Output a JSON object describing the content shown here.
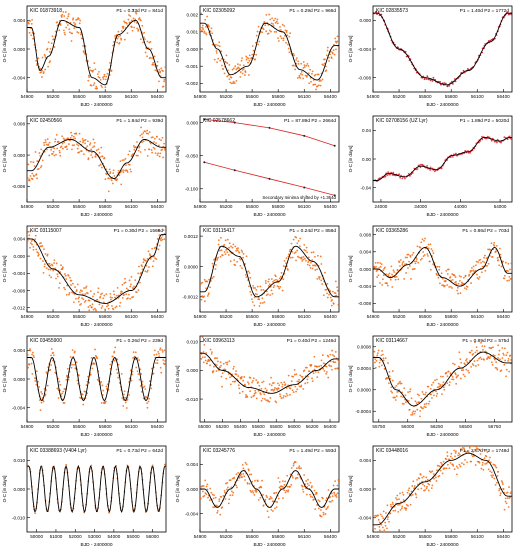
{
  "chart_data": [
    {
      "type": "scatter",
      "panel": "KIC 01873918",
      "period_label": "P1 = 0.33d P2 = 841d",
      "ylabel": "O-C [in days]",
      "xlabel": "BJD - 2400000",
      "xticks": [
        "54900",
        "55200",
        "55500",
        "55800",
        "56100",
        "56400"
      ],
      "yticks": [
        "0.004",
        "0.000",
        "-0.004"
      ],
      "xlim": [
        54900,
        56500
      ],
      "ylim": [
        -0.006,
        0.006
      ],
      "curve": [
        [
          54950,
          0.003
        ],
        [
          55050,
          -0.003
        ],
        [
          55150,
          -0.001
        ],
        [
          55300,
          0.004
        ],
        [
          55500,
          0.003
        ],
        [
          55650,
          -0.004
        ],
        [
          55800,
          -0.005
        ],
        [
          55950,
          0.002
        ],
        [
          56150,
          0.004
        ],
        [
          56300,
          0.0
        ],
        [
          56450,
          -0.004
        ]
      ]
    },
    {
      "type": "scatter",
      "panel": "KIC 02305092",
      "period_label": "P1 = 0.29d P2 = 966d",
      "ylabel": "O-C [in days]",
      "xlabel": "BJD - 2400000",
      "xticks": [
        "54900",
        "55200",
        "55500",
        "55800",
        "56100",
        "56400"
      ],
      "yticks": [
        "0.002",
        "0.001",
        "0.000",
        "-0.001",
        "-0.002"
      ],
      "xlim": [
        54900,
        56500
      ],
      "ylim": [
        -0.0025,
        0.0025
      ],
      "curve": [
        [
          54950,
          0.0015
        ],
        [
          55100,
          0.0
        ],
        [
          55250,
          -0.0015
        ],
        [
          55450,
          -0.001
        ],
        [
          55650,
          0.0015
        ],
        [
          55850,
          0.001
        ],
        [
          56050,
          -0.0012
        ],
        [
          56250,
          -0.0018
        ],
        [
          56450,
          0.0002
        ]
      ]
    },
    {
      "type": "line",
      "panel": "KIC 02835573",
      "period_label": "P1 = 1.40d P2 = 1772d",
      "ylabel": "O-C [in days]",
      "xlabel": "BJD - 2400000",
      "xticks": [
        "54900",
        "55200",
        "55500",
        "55800",
        "56100",
        "56400"
      ],
      "yticks": [
        "0.000",
        "-0.004",
        "-0.008"
      ],
      "xlim": [
        54900,
        56500
      ],
      "ylim": [
        -0.01,
        0.002
      ],
      "curve": [
        [
          54950,
          0.001
        ],
        [
          55200,
          -0.004
        ],
        [
          55500,
          -0.008
        ],
        [
          55750,
          -0.009
        ],
        [
          56000,
          -0.007
        ],
        [
          56250,
          -0.003
        ],
        [
          56450,
          0.001
        ]
      ]
    },
    {
      "type": "scatter",
      "panel": "KIC 02450566",
      "period_label": "P1 = 1.84d P2 = 939d",
      "ylabel": "O-C [in days]",
      "xlabel": "BJD - 2400000",
      "xticks": [
        "54900",
        "55200",
        "55500",
        "55800",
        "56100",
        "56400"
      ],
      "yticks": [
        "0.008",
        "0.000",
        "-0.008"
      ],
      "xlim": [
        54900,
        56500
      ],
      "ylim": [
        -0.012,
        0.01
      ],
      "curve": [
        [
          54950,
          -0.004
        ],
        [
          55150,
          0.002
        ],
        [
          55400,
          0.004
        ],
        [
          55650,
          0.001
        ],
        [
          55900,
          -0.006
        ],
        [
          56050,
          -0.002
        ],
        [
          56250,
          0.004
        ],
        [
          56450,
          0.002
        ]
      ]
    },
    {
      "type": "line",
      "panel": "KIC 02578662",
      "period_label": "P1 = 87.89d P2 = 2664d",
      "ylabel": "O-C [in days]",
      "xlabel": "BJD - 2400000",
      "annotation": "Secondary minima shifted by +1.364d",
      "xticks": [
        "54900",
        "55200",
        "55500",
        "55800",
        "56100",
        "56400"
      ],
      "yticks": [
        "0.000",
        "-0.050",
        "-0.100"
      ],
      "xlim": [
        54900,
        56500
      ],
      "ylim": [
        -0.12,
        0.01
      ],
      "series": [
        {
          "values": [
            [
              54950,
              0.005
            ],
            [
              55300,
              0.0
            ],
            [
              55700,
              -0.008
            ],
            [
              56100,
              -0.02
            ],
            [
              56450,
              -0.035
            ]
          ]
        },
        {
          "values": [
            [
              54950,
              -0.06
            ],
            [
              55300,
              -0.072
            ],
            [
              55700,
              -0.085
            ],
            [
              56100,
              -0.098
            ],
            [
              56450,
              -0.11
            ]
          ]
        }
      ]
    },
    {
      "type": "line",
      "panel": "KIC 02708156 (UZ Lyr)",
      "period_label": "P1 = 1.89d P2 = 5020d",
      "ylabel": "O-C [in days]",
      "xlabel": "BJD - 2400000",
      "xticks": [
        "24000",
        "34000",
        "44000",
        "54000"
      ],
      "yticks": [
        "0.04",
        "0.00",
        "-0.04"
      ],
      "xlim": [
        22000,
        57000
      ],
      "ylim": [
        -0.06,
        0.06
      ],
      "curve": [
        [
          23000,
          -0.03
        ],
        [
          26000,
          -0.02
        ],
        [
          30000,
          -0.025
        ],
        [
          34000,
          -0.01
        ],
        [
          38000,
          -0.015
        ],
        [
          42000,
          0.005
        ],
        [
          46000,
          0.01
        ],
        [
          50000,
          0.03
        ],
        [
          54000,
          0.025
        ],
        [
          56500,
          0.03
        ]
      ]
    },
    {
      "type": "scatter",
      "panel": "KIC 03115007",
      "period_label": "P1 = 0.30d P2 = 1568d",
      "ylabel": "O-C [in days]",
      "xlabel": "BJD - 2400000",
      "xticks": [
        "54900",
        "55200",
        "55500",
        "55800",
        "56100",
        "56400"
      ],
      "yticks": [
        "0.004",
        "0.000",
        "-0.004",
        "-0.008",
        "-0.012"
      ],
      "xlim": [
        54900,
        56500
      ],
      "ylim": [
        -0.013,
        0.007
      ],
      "curve": [
        [
          54950,
          0.004
        ],
        [
          55200,
          -0.003
        ],
        [
          55500,
          -0.009
        ],
        [
          55800,
          -0.011
        ],
        [
          56100,
          -0.008
        ],
        [
          56350,
          0.0
        ],
        [
          56450,
          0.005
        ]
      ]
    },
    {
      "type": "scatter",
      "panel": "KIC 03115417",
      "period_label": "P1 = 0.24d P2 = 858d",
      "ylabel": "O-C [in days]",
      "xlabel": "BJD - 2400000",
      "xticks": [
        "54900",
        "55200",
        "55500",
        "55800",
        "56100",
        "56400"
      ],
      "yticks": [
        "0.0012",
        "0.0000",
        "-0.0012"
      ],
      "xlim": [
        54900,
        56500
      ],
      "ylim": [
        -0.0018,
        0.0016
      ],
      "curve": [
        [
          54950,
          -0.001
        ],
        [
          55150,
          0.0008
        ],
        [
          55350,
          0.0004
        ],
        [
          55550,
          -0.0012
        ],
        [
          55800,
          -0.0006
        ],
        [
          56000,
          0.0008
        ],
        [
          56200,
          0.0002
        ],
        [
          56450,
          -0.0012
        ]
      ]
    },
    {
      "type": "scatter",
      "panel": "KIC 03365286",
      "period_label": "P1 = 0.86d P2 = 703d",
      "ylabel": "O-C [in days]",
      "xlabel": "BJD - 2400000",
      "xticks": [
        "54900",
        "55200",
        "55500",
        "55800",
        "56100",
        "56400"
      ],
      "yticks": [
        "0.008",
        "0.004",
        "0.000",
        "-0.004",
        "-0.008"
      ],
      "xlim": [
        54900,
        56500
      ],
      "ylim": [
        -0.01,
        0.01
      ],
      "curve": [
        [
          54950,
          0.0
        ],
        [
          55100,
          -0.002
        ],
        [
          55300,
          0.001
        ],
        [
          55500,
          0.005
        ],
        [
          55700,
          -0.002
        ],
        [
          55900,
          -0.004
        ],
        [
          56150,
          0.0
        ],
        [
          56300,
          0.005
        ],
        [
          56450,
          -0.001
        ]
      ]
    },
    {
      "type": "scatter",
      "panel": "KIC 03455900",
      "period_label": "P1 = 0.26d P2 = 239d",
      "ylabel": "O-C [in days]",
      "xlabel": "BJD - 2400000",
      "xticks": [
        "54900",
        "55200",
        "55500",
        "55800",
        "56100",
        "56400"
      ],
      "yticks": [
        "0.004",
        "0.000",
        "-0.004"
      ],
      "xlim": [
        54900,
        56500
      ],
      "ylim": [
        -0.006,
        0.006
      ],
      "curve": [
        [
          54950,
          0.003
        ],
        [
          55070,
          -0.003
        ],
        [
          55190,
          0.003
        ],
        [
          55310,
          -0.003
        ],
        [
          55430,
          0.003
        ],
        [
          55550,
          -0.003
        ],
        [
          55670,
          0.003
        ],
        [
          55790,
          -0.003
        ],
        [
          55910,
          0.003
        ],
        [
          56030,
          -0.003
        ],
        [
          56150,
          0.003
        ],
        [
          56270,
          -0.003
        ],
        [
          56390,
          0.003
        ]
      ]
    },
    {
      "type": "scatter",
      "panel": "KIC 03963113",
      "period_label": "P1 = 0.40d P2 = 1246d",
      "ylabel": "O-C [in days]",
      "xlabel": "BJD - 2400000",
      "xticks": [
        "55000",
        "55200",
        "55400",
        "55600",
        "55800",
        "56000",
        "56200",
        "56400"
      ],
      "yticks": [
        "0.010",
        "0.000",
        "-0.010"
      ],
      "xlim": [
        54950,
        56500
      ],
      "ylim": [
        -0.018,
        0.012
      ],
      "curve": [
        [
          54980,
          0.006
        ],
        [
          55200,
          0.0
        ],
        [
          55500,
          -0.006
        ],
        [
          55750,
          -0.008
        ],
        [
          56000,
          -0.005
        ],
        [
          56250,
          0.0
        ],
        [
          56450,
          0.004
        ]
      ]
    },
    {
      "type": "scatter",
      "panel": "KIC 03114667",
      "period_label": "P1 = 0.89d P2 = 575d",
      "ylabel": "O-C [in days]",
      "xlabel": "BJD - 2400000",
      "xticks": [
        "55750",
        "56000",
        "56250",
        "56500",
        "56750"
      ],
      "yticks": [
        "0.0008",
        "0.0004",
        "0.0000",
        "-0.0004"
      ],
      "xlim": [
        55700,
        56900
      ],
      "ylim": [
        -0.0006,
        0.001
      ],
      "curve": [
        [
          55750,
          0.0006
        ],
        [
          55900,
          0.0
        ],
        [
          56050,
          -0.0003
        ],
        [
          56250,
          0.0
        ],
        [
          56450,
          0.0004
        ],
        [
          56650,
          0.0007
        ],
        [
          56850,
          0.0005
        ]
      ]
    },
    {
      "type": "line",
      "panel": "KIC 03388693 (V404 Lyr)",
      "period_label": "P1 = 0.73d P2 = 642d",
      "ylabel": "O-C [in days]",
      "xlabel": "BJD - 2400000",
      "xticks": [
        "50000",
        "51000",
        "52000",
        "53000",
        "54000",
        "55000",
        "56000"
      ],
      "yticks": [
        "0.010",
        "0.000",
        "-0.010"
      ],
      "xlim": [
        49500,
        56700
      ],
      "ylim": [
        -0.015,
        0.015
      ],
      "curve": [
        [
          49600,
          0.008
        ],
        [
          49920,
          -0.008
        ],
        [
          50240,
          0.008
        ],
        [
          50560,
          -0.008
        ],
        [
          50880,
          0.008
        ],
        [
          51200,
          -0.008
        ],
        [
          51520,
          0.008
        ],
        [
          51840,
          -0.008
        ],
        [
          52160,
          0.008
        ],
        [
          52480,
          -0.008
        ],
        [
          52800,
          0.008
        ],
        [
          53120,
          -0.008
        ],
        [
          53440,
          0.008
        ],
        [
          53760,
          -0.008
        ],
        [
          54080,
          0.008
        ],
        [
          54400,
          -0.008
        ],
        [
          54720,
          0.008
        ],
        [
          55040,
          -0.008
        ],
        [
          55360,
          0.008
        ],
        [
          55680,
          -0.008
        ],
        [
          56000,
          0.008
        ],
        [
          56320,
          -0.008
        ],
        [
          56640,
          0.008
        ]
      ]
    },
    {
      "type": "scatter",
      "panel": "KIC 03245776",
      "period_label": "P1 = 1.49d P2 = 593d",
      "ylabel": "O-C [in days]",
      "xlabel": "BJD - 2400000",
      "xticks": [
        "54900",
        "55200",
        "55500",
        "55800",
        "56100",
        "56400"
      ],
      "yticks": [
        "0.004",
        "0.000",
        "-0.004"
      ],
      "xlim": [
        54900,
        56500
      ],
      "ylim": [
        -0.007,
        0.007
      ],
      "curve": [
        [
          54950,
          0.0
        ],
        [
          55100,
          -0.003
        ],
        [
          55250,
          0.0
        ],
        [
          55400,
          0.003
        ],
        [
          55550,
          0.0
        ],
        [
          55700,
          -0.003
        ],
        [
          55850,
          0.0
        ],
        [
          56000,
          0.003
        ],
        [
          56150,
          0.0
        ],
        [
          56300,
          -0.003
        ],
        [
          56450,
          0.0
        ]
      ]
    },
    {
      "type": "scatter",
      "panel": "KIC 03448016",
      "period_label": "P1 = 2.67d P2 = 1748d",
      "ylabel": "O-C [in days]",
      "xlabel": "BJD - 2400000",
      "xticks": [
        "54900",
        "55200",
        "55500",
        "55800",
        "56100",
        "56400"
      ],
      "yticks": [
        "0.004",
        "0.000",
        "-0.004"
      ],
      "xlim": [
        54900,
        56500
      ],
      "ylim": [
        -0.006,
        0.006
      ],
      "curve": [
        [
          54950,
          -0.005
        ],
        [
          55200,
          -0.002
        ],
        [
          55500,
          0.001
        ],
        [
          55800,
          0.004
        ],
        [
          56000,
          0.005
        ],
        [
          56200,
          0.004
        ],
        [
          56450,
          -0.001
        ]
      ]
    }
  ]
}
